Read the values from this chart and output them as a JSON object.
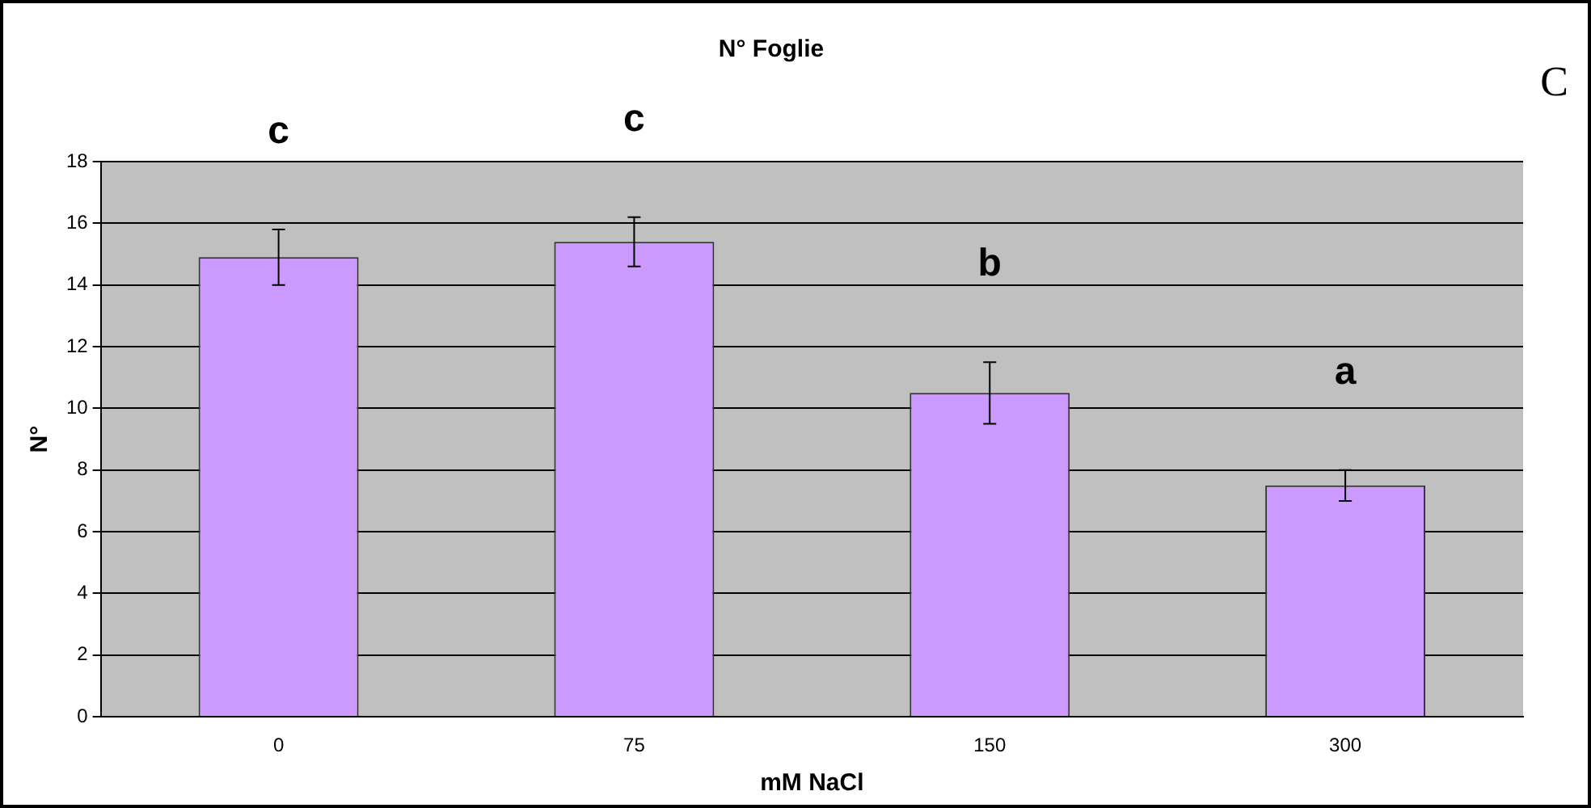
{
  "chart_data": {
    "type": "bar",
    "title": "N° Foglie",
    "xlabel": "mM NaCl",
    "ylabel": "N°",
    "categories": [
      "0",
      "75",
      "150",
      "300"
    ],
    "values": [
      14.9,
      15.4,
      10.5,
      7.5
    ],
    "errors": [
      0.9,
      0.8,
      1.0,
      0.5
    ],
    "color": "#cc99ff",
    "ylim": [
      0,
      18
    ],
    "yticks": [
      0,
      2,
      4,
      6,
      8,
      10,
      12,
      14,
      16,
      18
    ],
    "grid": "y",
    "legend": false,
    "annotations": [
      "c",
      "c",
      "b",
      "a",
      "C"
    ]
  }
}
